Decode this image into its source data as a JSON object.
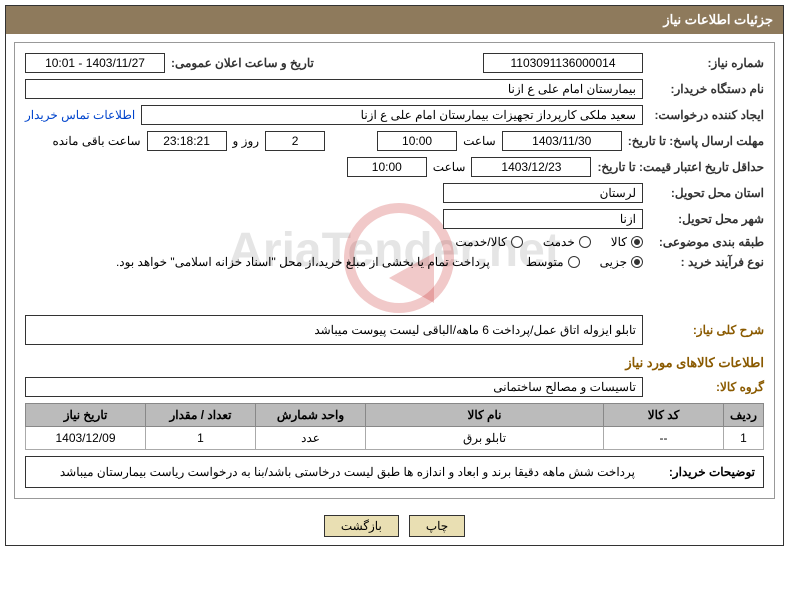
{
  "header": {
    "title": "جزئیات اطلاعات نیاز"
  },
  "fields": {
    "need_number_label": "شماره نیاز:",
    "need_number": "1103091136000014",
    "announce_label": "تاریخ و ساعت اعلان عمومی:",
    "announce_value": "1403/11/27 - 10:01",
    "buyer_org_label": "نام دستگاه خریدار:",
    "buyer_org": "بیمارستان امام علی ع ازنا",
    "requester_label": "ایجاد کننده درخواست:",
    "requester": "سعید ملکی کارپرداز تجهیزات بیمارستان امام علی ع ازنا",
    "contact_link": "اطلاعات تماس خریدار",
    "resp_deadline_label": "مهلت ارسال پاسخ: تا تاریخ:",
    "resp_date": "1403/11/30",
    "time_label": "ساعت",
    "resp_time": "10:00",
    "days": "2",
    "days_suffix": "روز و",
    "remaining_time": "23:18:21",
    "remaining_suffix": "ساعت باقی مانده",
    "min_validity_label": "حداقل تاریخ اعتبار قیمت: تا تاریخ:",
    "min_validity_date": "1403/12/23",
    "min_validity_time": "10:00",
    "province_label": "استان محل تحویل:",
    "province": "لرستان",
    "city_label": "شهر محل تحویل:",
    "city": "ازنا",
    "category_label": "طبقه بندی موضوعی:",
    "buy_type_label": "نوع فرآیند خرید :",
    "buy_note": "پرداخت تمام یا بخشی از مبلغ خرید،از محل \"اسناد خزانه اسلامی\" خواهد بود.",
    "general_desc_label": "شرح کلی نیاز:",
    "general_desc": "تابلو ایزوله اتاق عمل/پرداخت 6 ماهه/الباقی لیست پیوست میباشد",
    "goods_section_title": "اطلاعات کالاهای مورد نیاز",
    "goods_group_label": "گروه کالا:",
    "goods_group": "تاسیسات و مصالح ساختمانی",
    "buyer_desc_label": "توضیحات خریدار:",
    "buyer_desc": "پرداخت شش ماهه دقیقا برند و ابعاد و اندازه ها طبق لیست درخاستی باشد/بنا به درخواست ریاست بیمارستان میباشد"
  },
  "radios": {
    "category": {
      "options": [
        {
          "label": "کالا",
          "checked": true
        },
        {
          "label": "خدمت",
          "checked": false
        },
        {
          "label": "کالا/خدمت",
          "checked": false
        }
      ]
    },
    "buy_type": {
      "options": [
        {
          "label": "جزیی",
          "checked": true
        },
        {
          "label": "متوسط",
          "checked": false
        }
      ]
    }
  },
  "table": {
    "columns": [
      "ردیف",
      "کد کالا",
      "نام کالا",
      "واحد شمارش",
      "تعداد / مقدار",
      "تاریخ نیاز"
    ],
    "rows": [
      {
        "idx": "1",
        "code": "--",
        "name": "تابلو برق",
        "unit": "عدد",
        "qty": "1",
        "date": "1403/12/09"
      }
    ],
    "col_widths": [
      "40px",
      "120px",
      "auto",
      "110px",
      "110px",
      "120px"
    ]
  },
  "buttons": {
    "print": "چاپ",
    "back": "بازگشت"
  },
  "watermark": "AriaTender.net"
}
